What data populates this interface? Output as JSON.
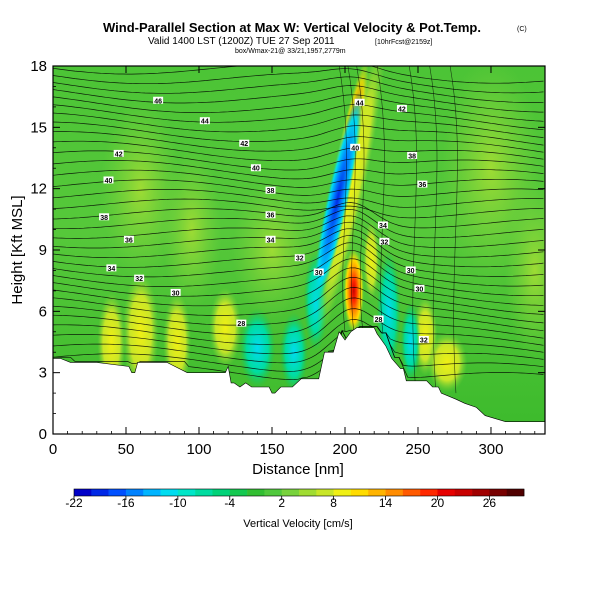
{
  "header": {
    "title": "Wind-Parallel Section at Max W: Vertical Velocity & Pot.Temp.",
    "title_mark": "(C)",
    "valid_line": "Valid 1400 LST (1200Z) TUE 27 Sep 2011",
    "fcst_tag": "[10hrFcst@2159z]",
    "small_line": "box/Wmax-21@ 33/21,1957,2779m"
  },
  "chart_data": {
    "type": "heatmap",
    "title": "Wind-Parallel Section at Max W: Vertical Velocity & Pot.Temp.",
    "xlabel": "Distance [nm]",
    "ylabel": "Height [Kft MSL]",
    "xlim": [
      0,
      337
    ],
    "ylim": [
      0,
      18
    ],
    "xticks": [
      0,
      50,
      100,
      150,
      200,
      250,
      300
    ],
    "yticks": [
      0,
      3,
      6,
      9,
      12,
      15,
      18
    ],
    "colorbar": {
      "label": "Vertical Velocity [cm/s]",
      "tick_labels": [
        "-22",
        "-16",
        "-10",
        "-4",
        "2",
        "8",
        "14",
        "20",
        "26"
      ],
      "range": [
        -22,
        30
      ],
      "colors": [
        "#0000c8",
        "#0028e6",
        "#0050ff",
        "#0082ff",
        "#00b4ff",
        "#00dcf0",
        "#00e6c8",
        "#00dca0",
        "#00d278",
        "#14c850",
        "#32be32",
        "#50c83c",
        "#78d23c",
        "#a0dc32",
        "#c8e628",
        "#f0f014",
        "#ffdc00",
        "#ffb400",
        "#ff8c00",
        "#ff5a00",
        "#ff2800",
        "#e60000",
        "#c80000",
        "#a00000",
        "#780000",
        "#500000"
      ]
    },
    "terrain": {
      "distance": [
        0,
        5,
        12,
        14,
        30,
        52,
        54,
        56,
        58,
        78,
        92,
        98,
        106,
        114,
        116,
        118,
        120,
        122,
        124,
        128,
        132,
        136,
        140,
        148,
        150,
        152,
        156,
        164,
        170,
        182,
        186,
        192,
        196,
        200,
        204,
        208,
        212,
        216,
        220,
        222,
        228,
        232,
        238,
        240,
        242,
        246,
        252,
        256,
        260,
        264,
        266,
        276,
        282,
        290,
        296,
        310,
        320,
        337
      ],
      "height": [
        3.7,
        3.7,
        3.5,
        3.5,
        3.5,
        3.3,
        3.0,
        3.0,
        3.5,
        3.5,
        3.0,
        3.0,
        3.0,
        3.0,
        3.0,
        3.0,
        3.3,
        2.5,
        2.5,
        2.3,
        2.5,
        2.3,
        2.3,
        2.3,
        2.0,
        2.0,
        2.3,
        2.3,
        2.7,
        2.7,
        4.0,
        4.0,
        5.0,
        4.6,
        5.0,
        5.2,
        5.2,
        5.2,
        5.2,
        4.9,
        4.3,
        3.7,
        3.2,
        3.2,
        2.6,
        2.6,
        2.6,
        2.6,
        2.3,
        2.3,
        2.0,
        1.7,
        1.5,
        1.3,
        0.9,
        0.6,
        0.6,
        0.6
      ]
    },
    "updraft_core": {
      "distance": 206,
      "height": 7.0,
      "peak_cms": 30
    },
    "downdraft_core": {
      "distance": 195,
      "height": 11.5,
      "min_cms": -22
    },
    "theta_contour_labels": [
      {
        "value": "46",
        "distance": 72,
        "height": 16.3
      },
      {
        "value": "44",
        "distance": 104,
        "height": 15.3
      },
      {
        "value": "42",
        "distance": 45,
        "height": 13.7
      },
      {
        "value": "42",
        "distance": 131,
        "height": 14.2
      },
      {
        "value": "40",
        "distance": 38,
        "height": 12.4
      },
      {
        "value": "40",
        "distance": 139,
        "height": 13.0
      },
      {
        "value": "38",
        "distance": 35,
        "height": 10.6
      },
      {
        "value": "38",
        "distance": 149,
        "height": 11.9
      },
      {
        "value": "36",
        "distance": 52,
        "height": 9.5
      },
      {
        "value": "36",
        "distance": 149,
        "height": 10.7
      },
      {
        "value": "34",
        "distance": 40,
        "height": 8.1
      },
      {
        "value": "34",
        "distance": 149,
        "height": 9.5
      },
      {
        "value": "32",
        "distance": 59,
        "height": 7.6
      },
      {
        "value": "32",
        "distance": 169,
        "height": 8.6
      },
      {
        "value": "30",
        "distance": 84,
        "height": 6.9
      },
      {
        "value": "30",
        "distance": 182,
        "height": 7.9
      },
      {
        "value": "28",
        "distance": 129,
        "height": 5.4
      },
      {
        "value": "44",
        "distance": 210,
        "height": 16.2
      },
      {
        "value": "42",
        "distance": 239,
        "height": 15.9
      },
      {
        "value": "40",
        "distance": 207,
        "height": 14.0
      },
      {
        "value": "38",
        "distance": 246,
        "height": 13.6
      },
      {
        "value": "36",
        "distance": 253,
        "height": 12.2
      },
      {
        "value": "34",
        "distance": 226,
        "height": 10.2
      },
      {
        "value": "32",
        "distance": 227,
        "height": 9.4
      },
      {
        "value": "30",
        "distance": 245,
        "height": 8.0
      },
      {
        "value": "30",
        "distance": 251,
        "height": 7.1
      },
      {
        "value": "28",
        "distance": 223,
        "height": 5.6
      },
      {
        "value": "32",
        "distance": 254,
        "height": 4.6
      }
    ]
  }
}
